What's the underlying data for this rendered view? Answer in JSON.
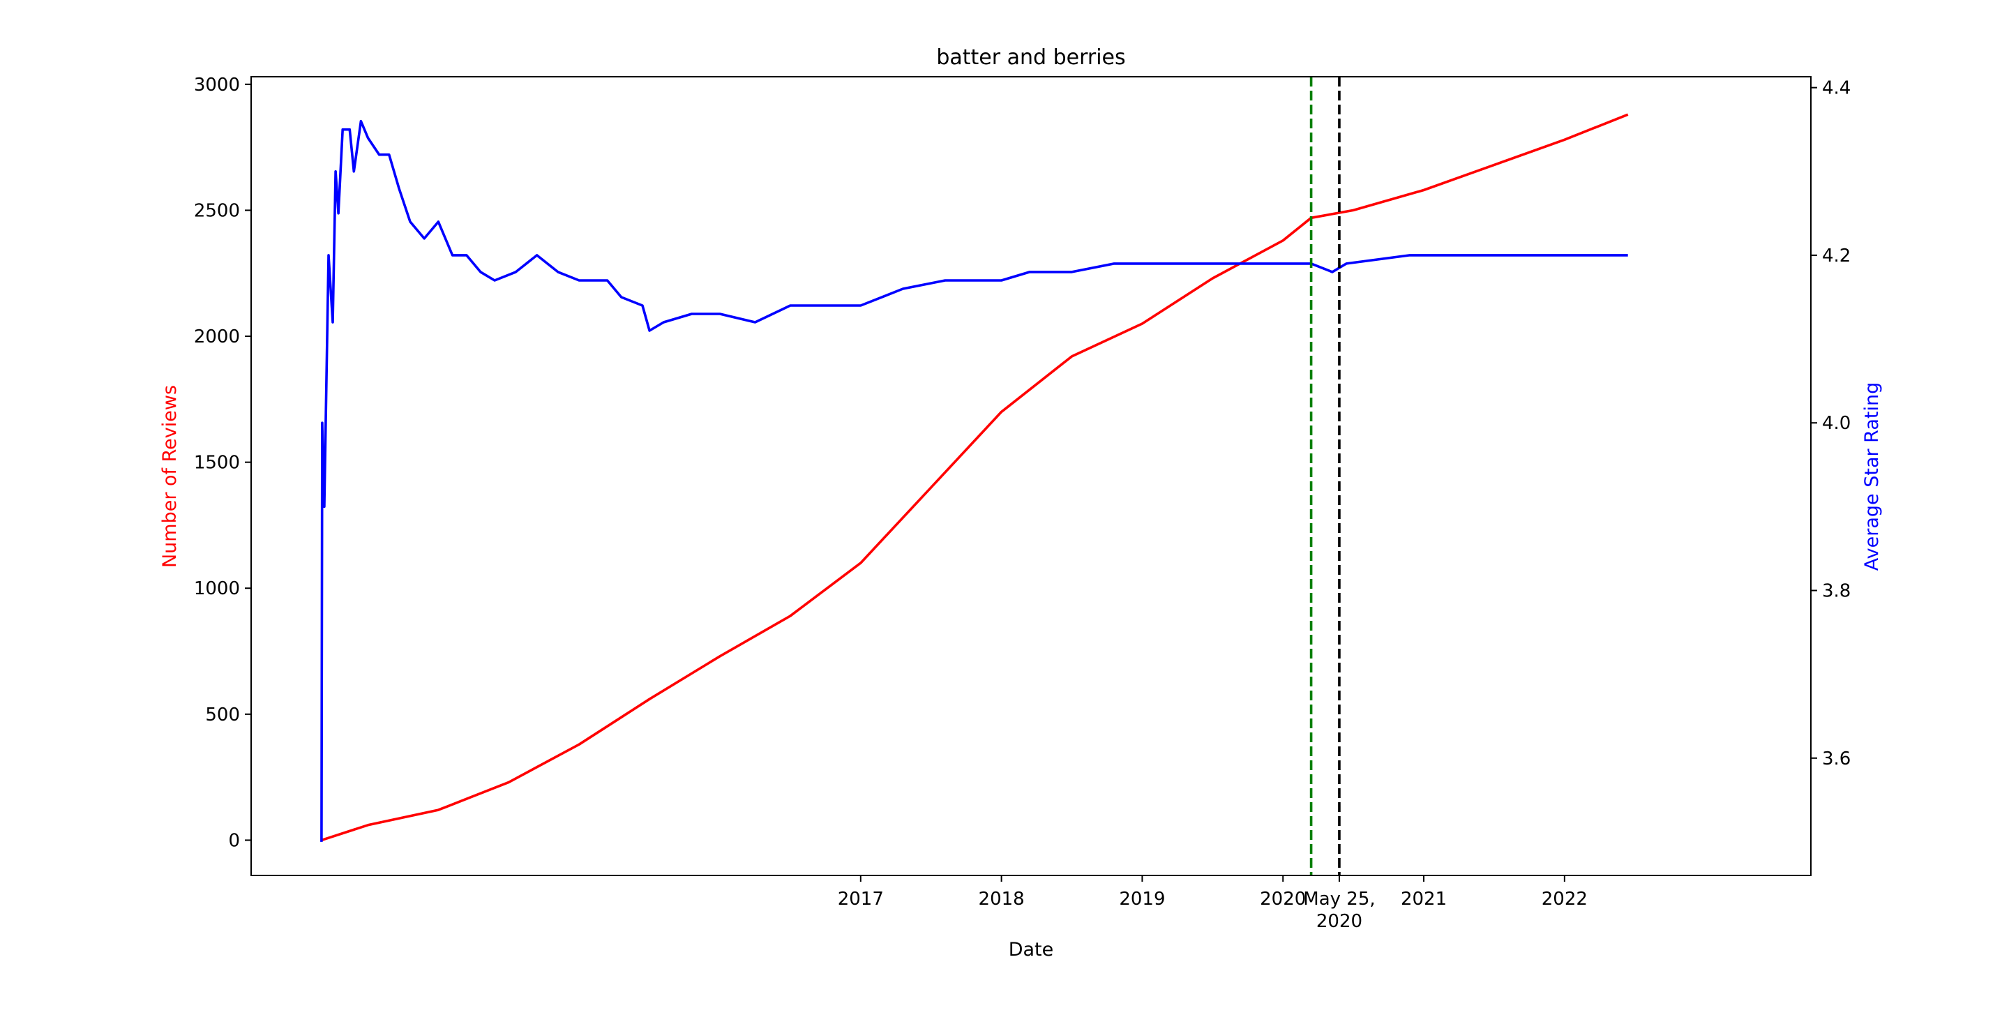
{
  "chart_data": {
    "type": "line",
    "title": "batter and berries",
    "xlabel": "Date",
    "ylabel_left": "Number of Reviews",
    "ylabel_right": "Average Star Rating",
    "xlim": [
      2012.67,
      2023.75
    ],
    "ylim_left": [
      -140,
      3030
    ],
    "ylim_right": [
      3.46,
      4.413
    ],
    "x_ticks": [
      {
        "x": 2017.0,
        "label": "2017"
      },
      {
        "x": 2018.0,
        "label": "2018"
      },
      {
        "x": 2019.0,
        "label": "2019"
      },
      {
        "x": 2020.0,
        "label": "2020"
      },
      {
        "x": 2020.4,
        "label": "May 25,\n2020"
      },
      {
        "x": 2021.0,
        "label": "2021"
      },
      {
        "x": 2022.0,
        "label": "2022"
      }
    ],
    "y_ticks_left": [
      0,
      500,
      1000,
      1500,
      2000,
      2500,
      3000
    ],
    "y_ticks_right": [
      "3.6",
      "3.8",
      "4.0",
      "4.2",
      "4.4"
    ],
    "vlines": [
      {
        "x": 2020.2,
        "color": "#008000",
        "style": "dashed"
      },
      {
        "x": 2020.4,
        "color": "#000000",
        "style": "dashed"
      }
    ],
    "series": [
      {
        "axis": "left",
        "color": "#ff0000",
        "points": [
          [
            2013.17,
            0
          ],
          [
            2013.5,
            60
          ],
          [
            2014.0,
            120
          ],
          [
            2014.5,
            230
          ],
          [
            2015.0,
            380
          ],
          [
            2015.5,
            560
          ],
          [
            2016.0,
            730
          ],
          [
            2016.5,
            890
          ],
          [
            2017.0,
            1100
          ],
          [
            2017.5,
            1400
          ],
          [
            2018.0,
            1700
          ],
          [
            2018.5,
            1920
          ],
          [
            2019.0,
            2050
          ],
          [
            2019.5,
            2230
          ],
          [
            2020.0,
            2380
          ],
          [
            2020.2,
            2470
          ],
          [
            2020.5,
            2500
          ],
          [
            2021.0,
            2580
          ],
          [
            2021.5,
            2680
          ],
          [
            2022.0,
            2780
          ],
          [
            2022.45,
            2880
          ]
        ]
      },
      {
        "axis": "right",
        "color": "#0000ff",
        "points": [
          [
            2013.17,
            3.5
          ],
          [
            2013.175,
            4.0
          ],
          [
            2013.19,
            3.9
          ],
          [
            2013.22,
            4.2
          ],
          [
            2013.25,
            4.12
          ],
          [
            2013.27,
            4.3
          ],
          [
            2013.29,
            4.25
          ],
          [
            2013.32,
            4.35
          ],
          [
            2013.37,
            4.35
          ],
          [
            2013.4,
            4.3
          ],
          [
            2013.45,
            4.36
          ],
          [
            2013.5,
            4.34
          ],
          [
            2013.58,
            4.32
          ],
          [
            2013.65,
            4.32
          ],
          [
            2013.72,
            4.28
          ],
          [
            2013.8,
            4.24
          ],
          [
            2013.9,
            4.22
          ],
          [
            2014.0,
            4.24
          ],
          [
            2014.1,
            4.2
          ],
          [
            2014.2,
            4.2
          ],
          [
            2014.3,
            4.18
          ],
          [
            2014.4,
            4.17
          ],
          [
            2014.55,
            4.18
          ],
          [
            2014.7,
            4.2
          ],
          [
            2014.85,
            4.18
          ],
          [
            2015.0,
            4.17
          ],
          [
            2015.2,
            4.17
          ],
          [
            2015.3,
            4.15
          ],
          [
            2015.45,
            4.14
          ],
          [
            2015.5,
            4.11
          ],
          [
            2015.6,
            4.12
          ],
          [
            2015.8,
            4.13
          ],
          [
            2016.0,
            4.13
          ],
          [
            2016.25,
            4.12
          ],
          [
            2016.5,
            4.14
          ],
          [
            2017.0,
            4.14
          ],
          [
            2017.3,
            4.16
          ],
          [
            2017.6,
            4.17
          ],
          [
            2018.0,
            4.17
          ],
          [
            2018.2,
            4.18
          ],
          [
            2018.5,
            4.18
          ],
          [
            2018.8,
            4.19
          ],
          [
            2019.5,
            4.19
          ],
          [
            2020.2,
            4.19
          ],
          [
            2020.35,
            4.18
          ],
          [
            2020.45,
            4.19
          ],
          [
            2020.9,
            4.2
          ],
          [
            2021.5,
            4.2
          ],
          [
            2022.45,
            4.2
          ]
        ]
      }
    ]
  }
}
